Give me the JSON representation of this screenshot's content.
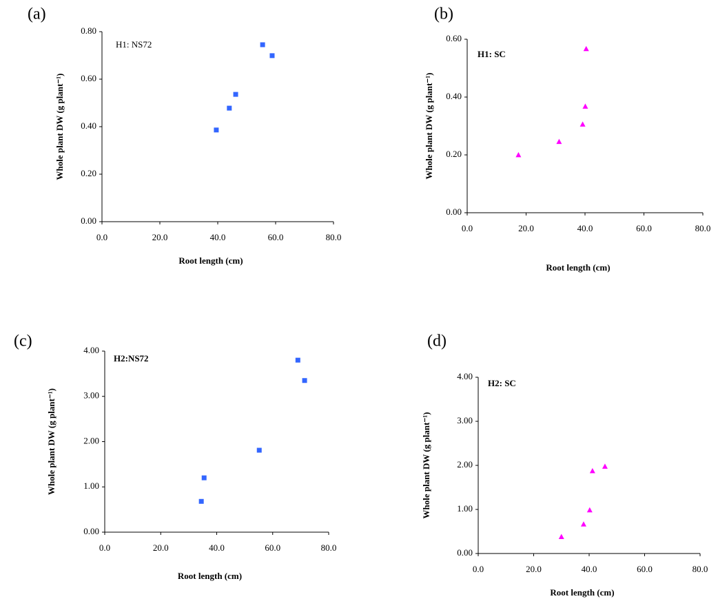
{
  "chart_data": [
    {
      "type": "scatter",
      "panel": "(a)",
      "title": "H1: NS72",
      "title_bold": false,
      "xlabel": "Root length (cm)",
      "ylabel": "Whole plant DW (g plant⁻¹)",
      "series": [
        {
          "color": "#3366ff",
          "marker": "square",
          "x": [
            39.5,
            44.0,
            46.2,
            55.5,
            58.8
          ],
          "values": [
            0.386,
            0.478,
            0.536,
            0.745,
            0.699
          ]
        }
      ],
      "xlim": [
        0,
        80
      ],
      "xticks": [
        {
          "value": 0,
          "label": "0.0"
        },
        {
          "value": 20,
          "label": "20.0"
        },
        {
          "value": 40,
          "label": "40.0"
        },
        {
          "value": 60,
          "label": "60.0"
        },
        {
          "value": 80,
          "label": "80.0"
        }
      ],
      "ylim": [
        0,
        0.8
      ],
      "yticks": [
        {
          "value": 0,
          "label": "0.00"
        },
        {
          "value": 0.2,
          "label": "0.20"
        },
        {
          "value": 0.4,
          "label": "0.40"
        },
        {
          "value": 0.6,
          "label": "0.60"
        },
        {
          "value": 0.8,
          "label": "0.80"
        }
      ]
    },
    {
      "type": "scatter",
      "panel": "(b)",
      "title": "H1: SC",
      "title_bold": true,
      "xlabel": "Root length (cm)",
      "ylabel": "Whole plant DW (g plant⁻¹)",
      "series": [
        {
          "color": "#ff00ff",
          "marker": "triangle",
          "x": [
            17.4,
            31.2,
            39.2,
            40.1,
            40.4
          ],
          "values": [
            0.199,
            0.245,
            0.305,
            0.367,
            0.566
          ]
        }
      ],
      "xlim": [
        0,
        80
      ],
      "xticks": [
        {
          "value": 0,
          "label": "0.0"
        },
        {
          "value": 20,
          "label": "20.0"
        },
        {
          "value": 40,
          "label": "40.0"
        },
        {
          "value": 60,
          "label": "60.0"
        },
        {
          "value": 80,
          "label": "80.0"
        }
      ],
      "ylim": [
        0,
        0.6
      ],
      "yticks": [
        {
          "value": 0,
          "label": "0.00"
        },
        {
          "value": 0.2,
          "label": "0.20"
        },
        {
          "value": 0.4,
          "label": "0.40"
        },
        {
          "value": 0.6,
          "label": "0.60"
        }
      ]
    },
    {
      "type": "scatter",
      "panel": "(c)",
      "title": "H2:NS72",
      "title_bold": true,
      "xlabel": "Root length (cm)",
      "ylabel": "Whole plant DW (g plant⁻¹)",
      "series": [
        {
          "color": "#3366ff",
          "marker": "square",
          "x": [
            34.5,
            35.5,
            55.2,
            69.0,
            71.4
          ],
          "values": [
            0.68,
            1.2,
            1.81,
            3.8,
            3.35
          ]
        }
      ],
      "xlim": [
        0,
        80
      ],
      "xticks": [
        {
          "value": 0,
          "label": "0.0"
        },
        {
          "value": 20,
          "label": "20.0"
        },
        {
          "value": 40,
          "label": "40.0"
        },
        {
          "value": 60,
          "label": "60.0"
        },
        {
          "value": 80,
          "label": "80.0"
        }
      ],
      "ylim": [
        0,
        4
      ],
      "yticks": [
        {
          "value": 0,
          "label": "0.00"
        },
        {
          "value": 1,
          "label": "1.00"
        },
        {
          "value": 2,
          "label": "2.00"
        },
        {
          "value": 3,
          "label": "3.00"
        },
        {
          "value": 4,
          "label": "4.00"
        }
      ]
    },
    {
      "type": "scatter",
      "panel": "(d)",
      "title": "H2: SC",
      "title_bold": true,
      "xlabel": "Root length (cm)",
      "ylabel": "Whole plant DW (g plant⁻¹)",
      "series": [
        {
          "color": "#ff00ff",
          "marker": "triangle",
          "x": [
            30.0,
            38.0,
            40.2,
            41.2,
            45.7
          ],
          "values": [
            0.375,
            0.66,
            0.98,
            1.87,
            1.97
          ]
        }
      ],
      "xlim": [
        0,
        80
      ],
      "xticks": [
        {
          "value": 0,
          "label": "0.0"
        },
        {
          "value": 20,
          "label": "20.0"
        },
        {
          "value": 40,
          "label": "40.0"
        },
        {
          "value": 60,
          "label": "60.0"
        },
        {
          "value": 80,
          "label": "80.0"
        }
      ],
      "ylim": [
        0,
        4
      ],
      "yticks": [
        {
          "value": 0,
          "label": "0.00"
        },
        {
          "value": 1,
          "label": "1.00"
        },
        {
          "value": 2,
          "label": "2.00"
        },
        {
          "value": 3,
          "label": "3.00"
        },
        {
          "value": 4,
          "label": "4.00"
        }
      ]
    }
  ]
}
